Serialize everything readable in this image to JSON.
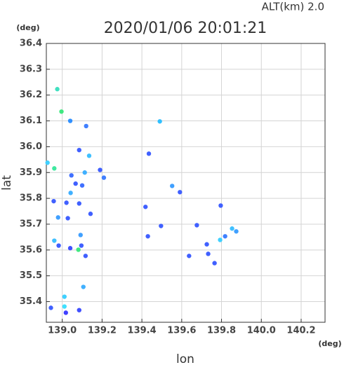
{
  "chart_data": {
    "type": "scatter",
    "title": "2020/01/06 20:01:21",
    "subtitle": "ALT(km)  2.0",
    "x_label": "lon",
    "y_label": "lat",
    "x_unit": "(deg)",
    "y_unit": "(deg)",
    "xlim": [
      138.92,
      140.32
    ],
    "ylim": [
      35.32,
      36.4
    ],
    "xticks": [
      {
        "value": 139,
        "label": "139.0"
      },
      139.2,
      139.4,
      139.6,
      139.8,
      {
        "value": 140,
        "label": "140.0"
      },
      140.2
    ],
    "yticks": [
      35.4,
      35.5,
      35.6,
      35.7,
      35.8,
      35.9,
      {
        "value": 36,
        "label": "36.0"
      },
      36.1,
      36.2,
      36.3,
      36.4
    ],
    "grid": true,
    "x": [
      138.975,
      138.996,
      139.04,
      139.12,
      139.49,
      139.085,
      139.135,
      138.926,
      138.96,
      139.046,
      139.113,
      139.19,
      139.435,
      139.209,
      139.067,
      139.1,
      139.042,
      138.957,
      139.021,
      139.085,
      138.979,
      139.028,
      139.142,
      139.092,
      138.96,
      138.982,
      139.04,
      139.081,
      139.096,
      139.117,
      139.418,
      139.43,
      139.496,
      139.591,
      139.637,
      139.676,
      139.726,
      139.733,
      139.796,
      139.818,
      139.853,
      139.874,
      139.793,
      139.106,
      139.011,
      139.011,
      138.943,
      139.018,
      139.085,
      139.765,
      139.552
    ],
    "values": [
      36.223,
      36.136,
      36.1,
      36.08,
      36.098,
      35.987,
      35.965,
      35.938,
      35.916,
      35.889,
      35.9,
      35.91,
      35.973,
      35.88,
      35.857,
      35.85,
      35.821,
      35.789,
      35.783,
      35.78,
      35.726,
      35.723,
      35.74,
      35.658,
      35.636,
      35.617,
      35.607,
      35.601,
      35.617,
      35.577,
      35.767,
      35.653,
      35.693,
      35.824,
      35.577,
      35.696,
      35.622,
      35.585,
      35.772,
      35.653,
      35.683,
      35.672,
      35.639,
      35.457,
      35.419,
      35.381,
      35.376,
      35.357,
      35.367,
      35.549,
      35.848
    ],
    "colors": [
      "#40e0c0",
      "#40e880",
      "#3090ff",
      "#4080ff",
      "#30c0ff",
      "#4060ff",
      "#40c0ff",
      "#40d0ff",
      "#40e8a0",
      "#4070ff",
      "#40b0ff",
      "#4060ff",
      "#4060ff",
      "#4080ff",
      "#4060ff",
      "#4070ff",
      "#40b0ff",
      "#4060ff",
      "#4060ff",
      "#4060ff",
      "#40a0ff",
      "#4060ff",
      "#4060ff",
      "#40a0ff",
      "#40c0ff",
      "#4060ff",
      "#4050ff",
      "#40e880",
      "#4060ff",
      "#4060ff",
      "#4060ff",
      "#4060ff",
      "#4060ff",
      "#4060ff",
      "#4060ff",
      "#4060ff",
      "#4060ff",
      "#4060ff",
      "#4060ff",
      "#4080ff",
      "#40c0ff",
      "#40a0ff",
      "#40d0ff",
      "#40b0ff",
      "#40d0ff",
      "#40e0ff",
      "#4060ff",
      "#4040ff",
      "#4050ff",
      "#4060ff",
      "#40a0ff"
    ]
  }
}
